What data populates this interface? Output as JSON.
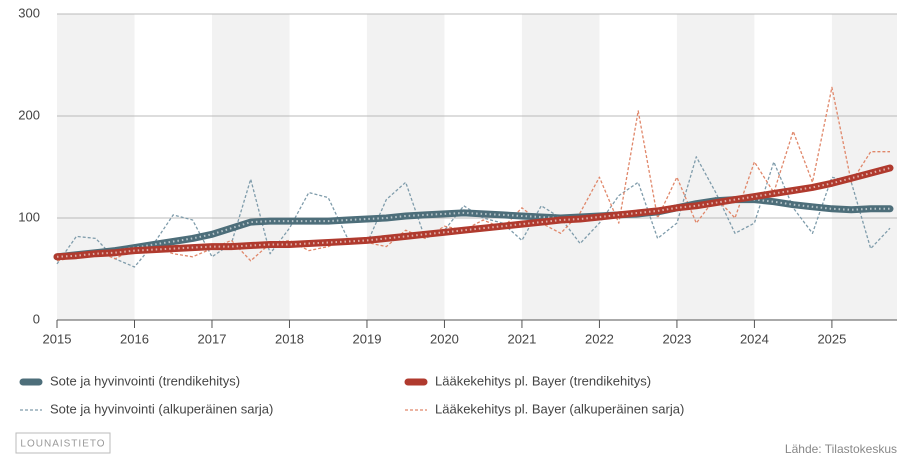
{
  "chart_data": {
    "type": "line",
    "x": [
      2015,
      2015.25,
      2015.5,
      2015.75,
      2016,
      2016.25,
      2016.5,
      2016.75,
      2017,
      2017.25,
      2017.5,
      2017.75,
      2018,
      2018.25,
      2018.5,
      2018.75,
      2019,
      2019.25,
      2019.5,
      2019.75,
      2020,
      2020.25,
      2020.5,
      2020.75,
      2021,
      2021.25,
      2021.5,
      2021.75,
      2022,
      2022.25,
      2022.5,
      2022.75,
      2023,
      2023.25,
      2023.5,
      2023.75,
      2024,
      2024.25,
      2024.5,
      2024.75,
      2025,
      2025.25,
      2025.5,
      2025.75
    ],
    "series": [
      {
        "name": "Sote ja hyvinvointi (trendikehitys)",
        "color": "#4d6e7a",
        "dashed": false,
        "values": [
          62,
          64,
          66,
          68,
          71,
          74,
          77,
          80,
          84,
          90,
          96,
          97,
          97,
          97,
          97,
          98,
          99,
          100,
          102,
          103,
          104,
          105,
          104,
          103,
          102,
          101,
          100,
          101,
          102,
          103,
          104,
          106,
          110,
          114,
          117,
          118,
          118,
          116,
          113,
          111,
          109,
          108,
          109,
          109
        ]
      },
      {
        "name": "Lääkekehitys pl. Bayer (trendikehitys)",
        "color": "#b03a2e",
        "dashed": false,
        "values": [
          62,
          63,
          65,
          66,
          68,
          69,
          70,
          71,
          72,
          72,
          73,
          74,
          74,
          75,
          76,
          77,
          78,
          80,
          82,
          84,
          86,
          88,
          90,
          92,
          94,
          96,
          98,
          99,
          101,
          103,
          105,
          107,
          110,
          112,
          115,
          118,
          121,
          124,
          127,
          130,
          134,
          139,
          144,
          149
        ]
      },
      {
        "name": "Sote ja hyvinvointi (alkuperäinen sarja)",
        "color": "#7f9cab",
        "dashed": true,
        "values": [
          55,
          82,
          80,
          60,
          52,
          75,
          103,
          98,
          62,
          75,
          138,
          65,
          90,
          125,
          120,
          80,
          75,
          118,
          135,
          80,
          88,
          112,
          100,
          95,
          78,
          112,
          100,
          75,
          95,
          122,
          135,
          80,
          95,
          160,
          125,
          85,
          95,
          155,
          110,
          85,
          140,
          135,
          70,
          90
        ]
      },
      {
        "name": "Lääkekehitys pl. Bayer (alkuperäinen sarja)",
        "color": "#e0876a",
        "dashed": true,
        "values": [
          58,
          62,
          68,
          60,
          70,
          72,
          65,
          62,
          70,
          78,
          58,
          75,
          78,
          68,
          72,
          80,
          76,
          72,
          88,
          80,
          92,
          88,
          98,
          90,
          110,
          95,
          85,
          105,
          140,
          95,
          205,
          100,
          140,
          95,
          120,
          100,
          155,
          125,
          185,
          135,
          228,
          135,
          165,
          165
        ]
      }
    ],
    "xlim": [
      2015,
      2025.84
    ],
    "xticks": [
      2015,
      2016,
      2017,
      2018,
      2019,
      2020,
      2021,
      2022,
      2023,
      2024,
      2025
    ],
    "ylim": [
      0,
      300
    ],
    "yticks": [
      0,
      100,
      200,
      300
    ],
    "grid": true,
    "logo": "LOUNAISTIETO",
    "source": "Lähde: Tilastokeskus"
  }
}
